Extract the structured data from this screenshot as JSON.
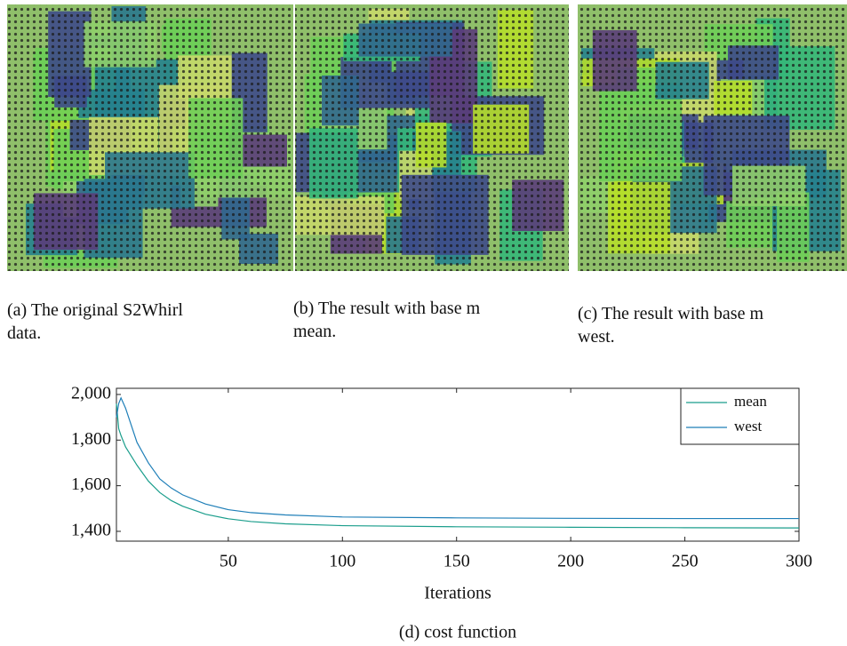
{
  "panels": [
    {
      "caption": "(a) The original S2Whirl data."
    },
    {
      "caption": "(b) The result with base m mean."
    },
    {
      "caption": "(c) The result with base m west."
    }
  ],
  "chart_data": {
    "type": "line",
    "title": "(d) cost function",
    "x_label": "Iterations",
    "x": [
      1,
      2,
      3,
      5,
      10,
      15,
      20,
      25,
      30,
      40,
      50,
      60,
      75,
      100,
      150,
      200,
      250,
      300
    ],
    "series": [
      {
        "name": "mean",
        "color": "#1b9e8c",
        "values": [
          1960,
          1850,
          1820,
          1770,
          1690,
          1620,
          1570,
          1535,
          1510,
          1475,
          1455,
          1443,
          1433,
          1425,
          1420,
          1418,
          1416,
          1415
        ]
      },
      {
        "name": "west",
        "color": "#1f7fb8",
        "values": [
          1900,
          1960,
          1985,
          1940,
          1790,
          1700,
          1630,
          1590,
          1560,
          1520,
          1495,
          1482,
          1472,
          1463,
          1459,
          1457,
          1456,
          1456
        ]
      }
    ],
    "xlim": [
      1,
      300
    ],
    "xticks": [
      50,
      100,
      150,
      200,
      250,
      300
    ],
    "ylim": [
      1357,
      2027
    ],
    "yticks": [
      {
        "value": 1400,
        "label": "1,400"
      },
      {
        "value": 1600,
        "label": "1,600"
      },
      {
        "value": 1800,
        "label": "1,800"
      },
      {
        "value": 2000,
        "label": "2,000"
      }
    ],
    "legend": "upper right"
  }
}
